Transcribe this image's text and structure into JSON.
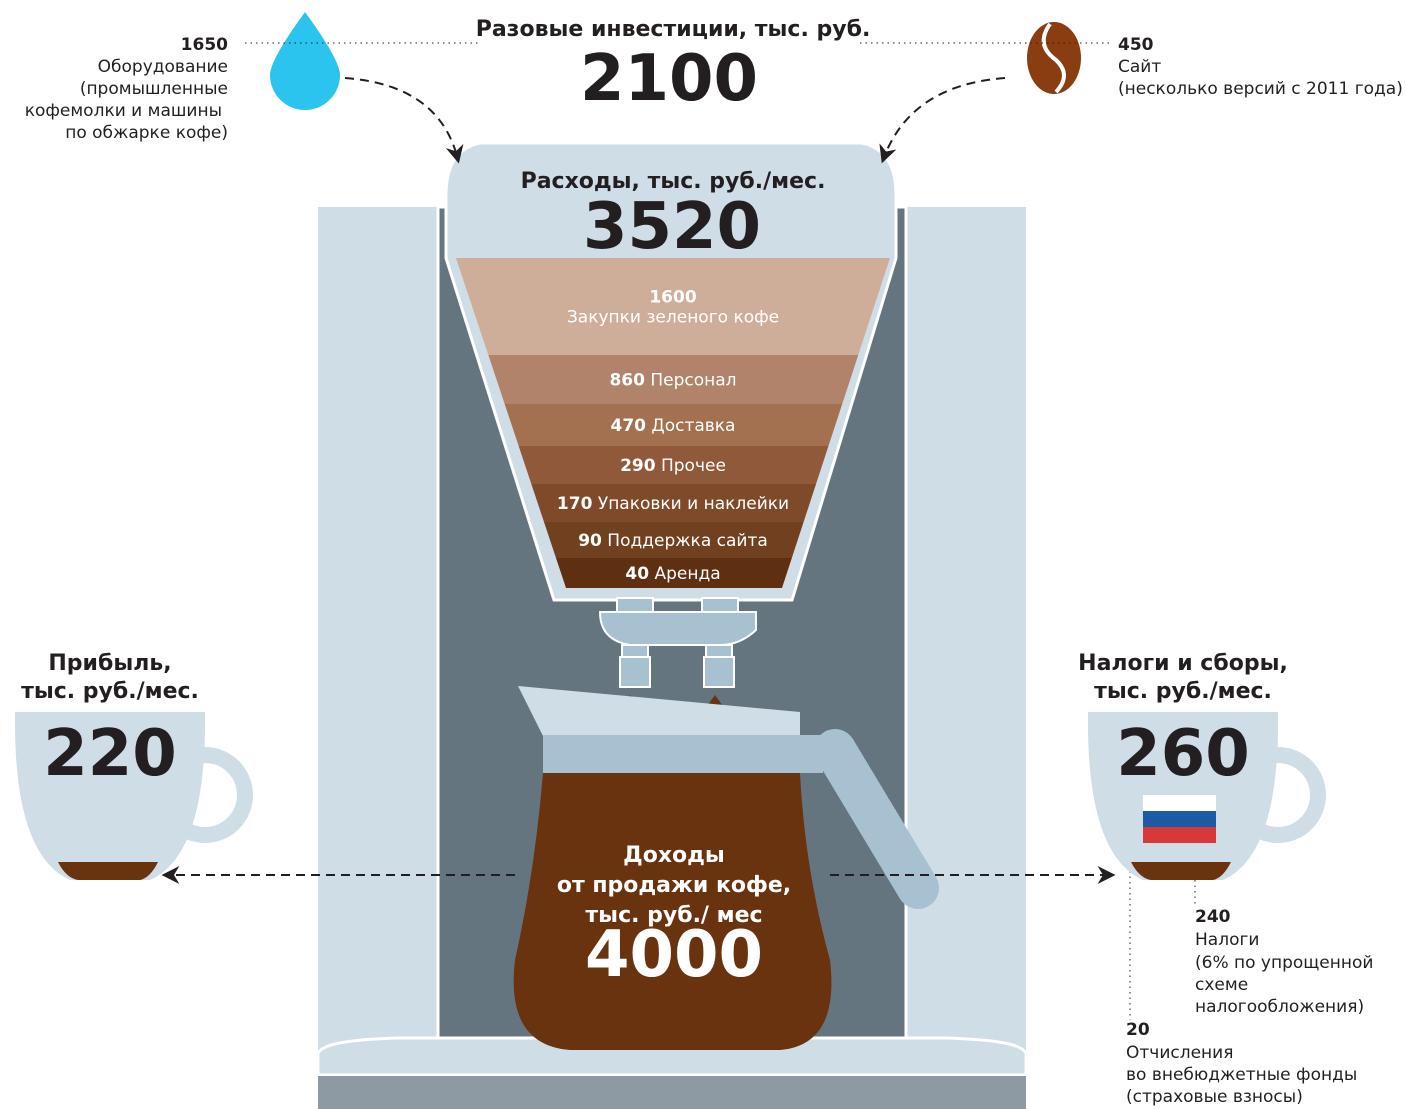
{
  "investment": {
    "title": "Разовые инвестиции, тыс. руб.",
    "total": 2100,
    "equipment": {
      "value": 1650,
      "label": "Оборудование",
      "note": [
        "(промышленные",
        "кофемолки и машины",
        "по обжарке кофе)"
      ]
    },
    "site": {
      "value": 450,
      "label": "Сайт",
      "note": "(несколько версий с 2011 года)"
    }
  },
  "expenses": {
    "title": "Расходы, тыс. руб./мес.",
    "total": 3520,
    "items": [
      {
        "value": 1600,
        "label": "Закупки зеленого кофе"
      },
      {
        "value": 860,
        "label": "Персонал"
      },
      {
        "value": 470,
        "label": "Доставка"
      },
      {
        "value": 290,
        "label": "Прочее"
      },
      {
        "value": 170,
        "label": "Упаковки и наклейки"
      },
      {
        "value": 90,
        "label": "Поддержка сайта"
      },
      {
        "value": 40,
        "label": "Аренда"
      }
    ]
  },
  "income": {
    "title": [
      "Доходы",
      "от продажи кофе,",
      "тыс. руб./ мес"
    ],
    "total": 4000
  },
  "profit": {
    "title": [
      "Прибыль,",
      "тыс. руб./мес."
    ],
    "value": 220
  },
  "taxes": {
    "title": [
      "Налоги и сборы,",
      "тыс. руб./мес."
    ],
    "value": 260,
    "tax": {
      "value": 240,
      "label": "Налоги",
      "note": [
        "(6% по упрощенной",
        "схеме",
        "налогообложения)"
      ]
    },
    "funds": {
      "value": 20,
      "label": [
        "Отчисления",
        "во внебюджетные фонды",
        "(страховые взносы)"
      ]
    }
  }
}
